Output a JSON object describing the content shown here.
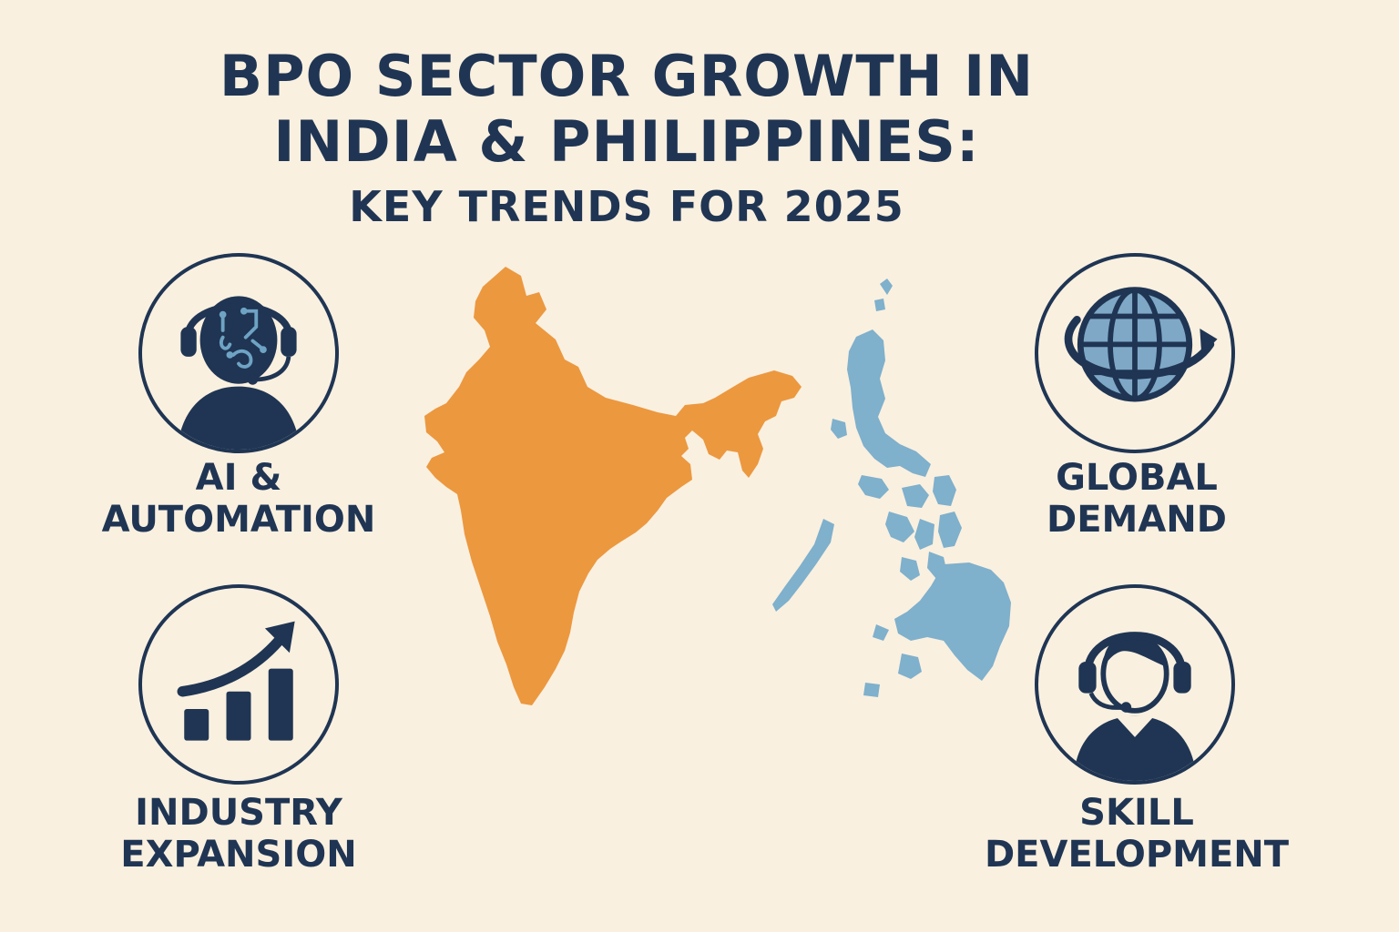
{
  "title": {
    "line1": "BPO SECTOR GROWTH IN",
    "line2": "INDIA & PHILIPPINES:",
    "line3": "KEY TRENDS FOR 2025"
  },
  "trends": {
    "ai": {
      "line1": "AI &",
      "line2": "AUTOMATION",
      "icon": "ai-agent-headset-icon"
    },
    "global": {
      "line1": "GLOBAL",
      "line2": "DEMAND",
      "icon": "globe-arrow-icon"
    },
    "industry": {
      "line1": "INDUSTRY",
      "line2": "EXPANSION",
      "icon": "growth-chart-icon"
    },
    "skill": {
      "line1": "SKILL",
      "line2": "DEVELOPMENT",
      "icon": "agent-headset-icon"
    }
  },
  "colors": {
    "background": "#faf0e0",
    "navy": "#1f3553",
    "india": "#ec983f",
    "philippines": "#7fb0cc",
    "circuit": "#6fa3c4"
  }
}
